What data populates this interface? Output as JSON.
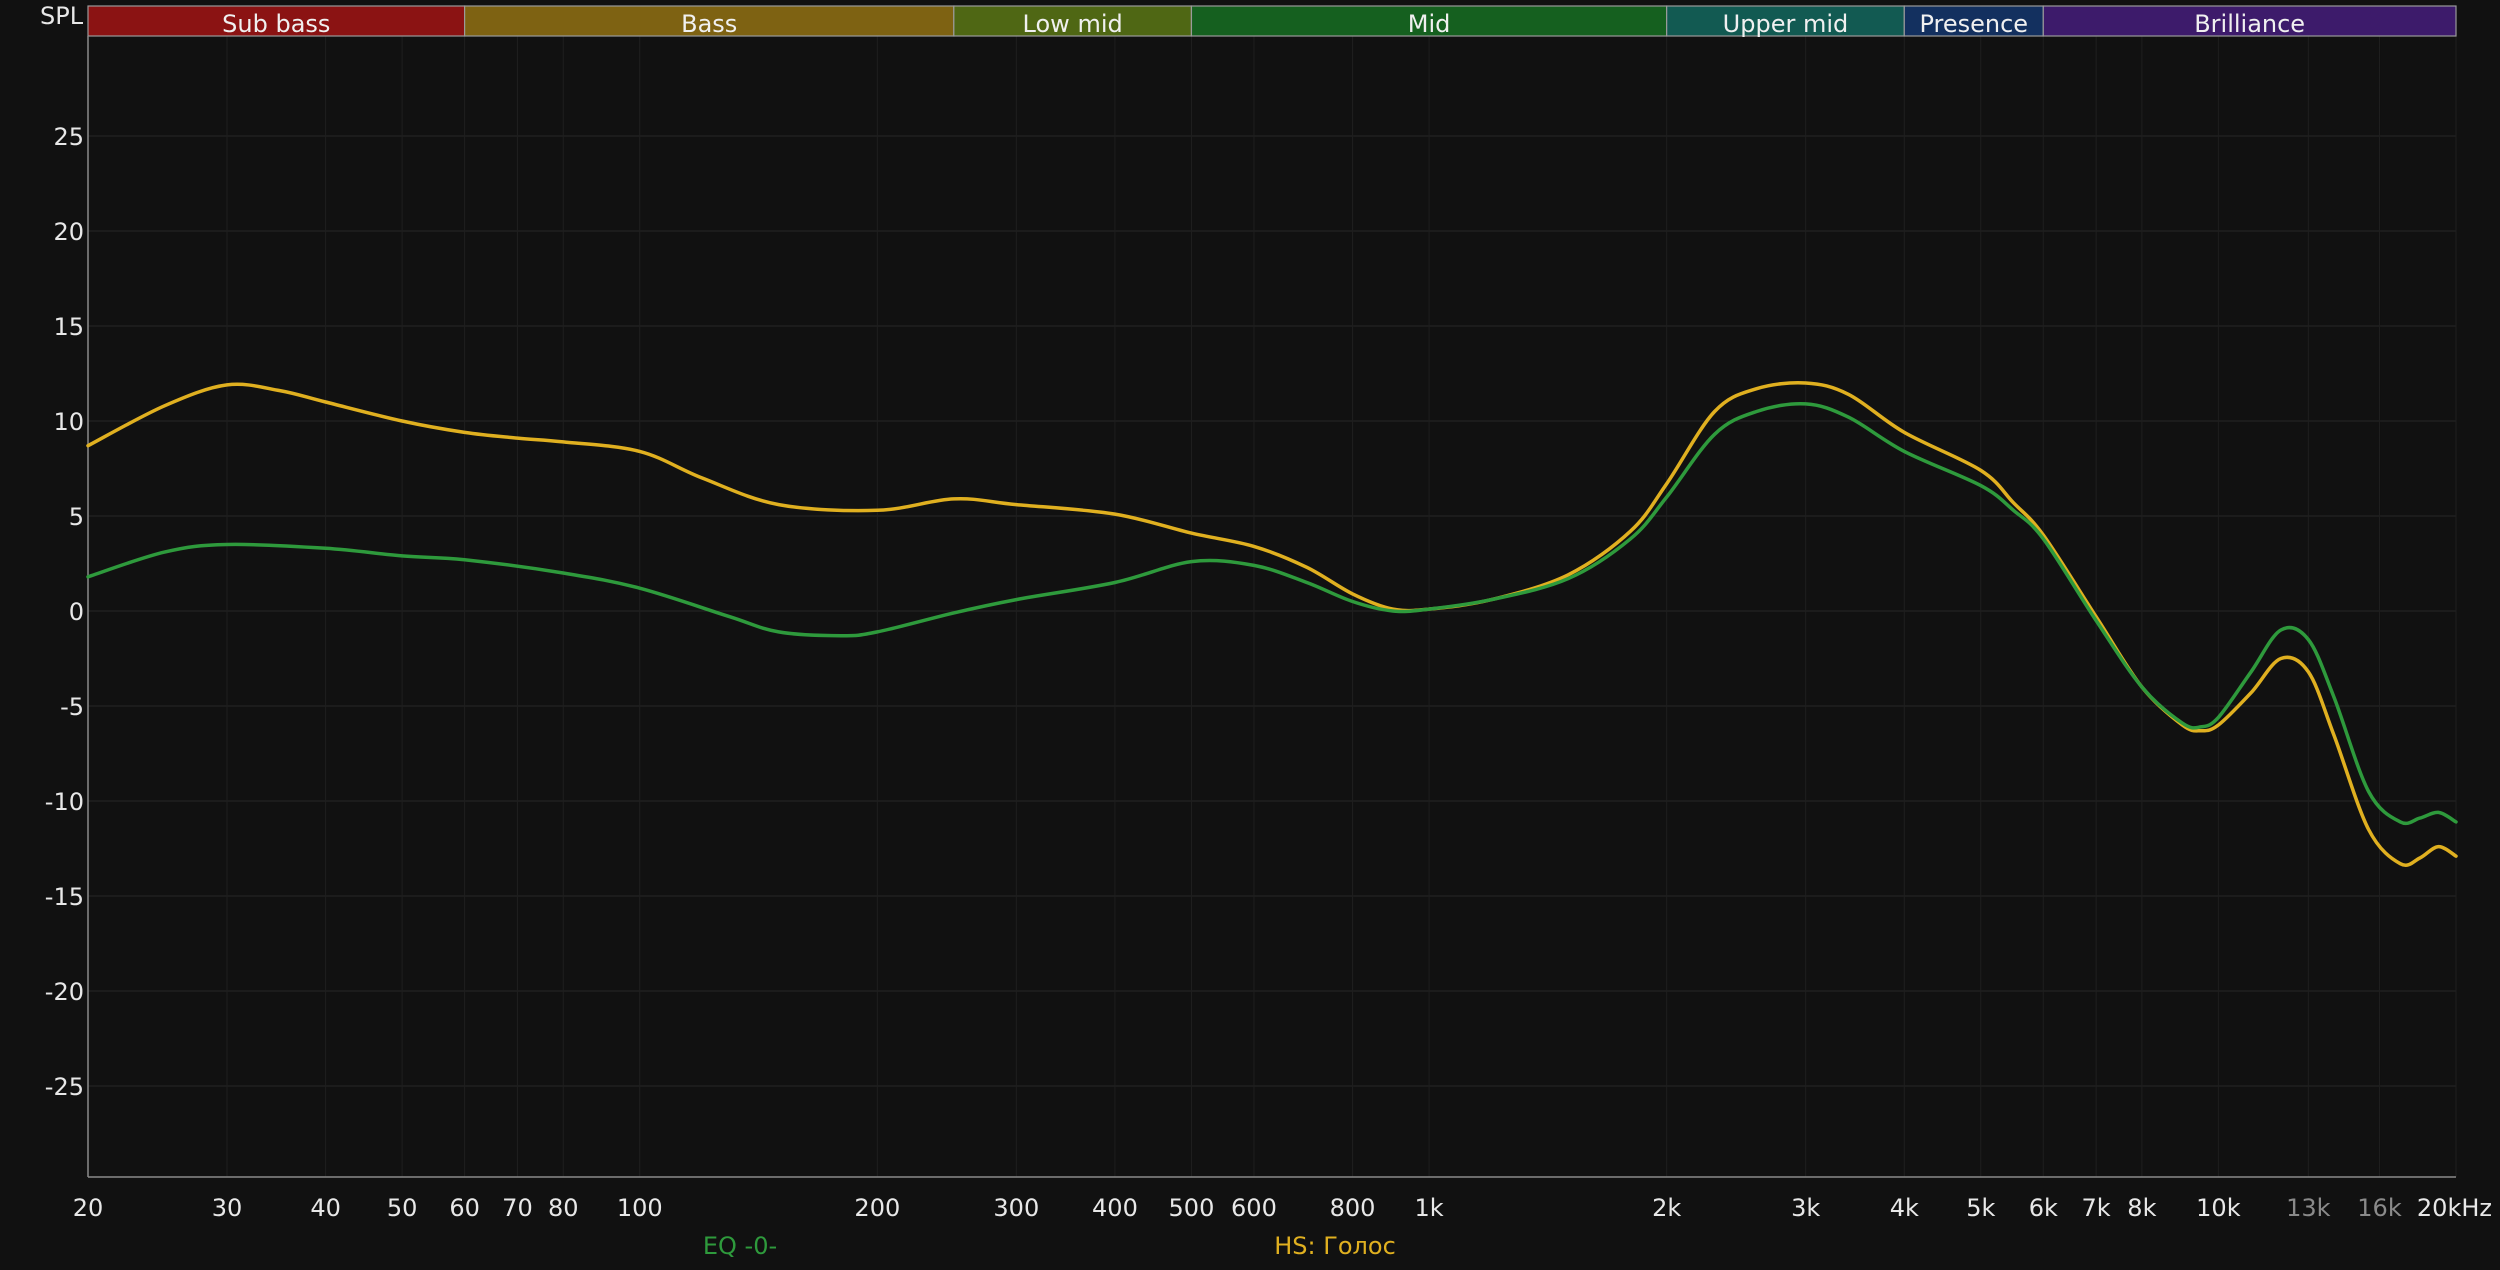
{
  "chart_data": {
    "type": "line",
    "ylabel": "SPL",
    "x_unit": "Hz",
    "x_scale": "log",
    "xlim": [
      20,
      20000
    ],
    "ylim": [
      -30,
      30
    ],
    "y_ticks": [
      25,
      20,
      15,
      10,
      5,
      0,
      -5,
      -10,
      -15,
      -20,
      -25
    ],
    "x_ticks": [
      {
        "value": 20,
        "label": "20"
      },
      {
        "value": 30,
        "label": "30"
      },
      {
        "value": 40,
        "label": "40"
      },
      {
        "value": 50,
        "label": "50"
      },
      {
        "value": 60,
        "label": "60"
      },
      {
        "value": 70,
        "label": "70"
      },
      {
        "value": 80,
        "label": "80"
      },
      {
        "value": 100,
        "label": "100"
      },
      {
        "value": 200,
        "label": "200"
      },
      {
        "value": 300,
        "label": "300"
      },
      {
        "value": 400,
        "label": "400"
      },
      {
        "value": 500,
        "label": "500"
      },
      {
        "value": 600,
        "label": "600"
      },
      {
        "value": 800,
        "label": "800"
      },
      {
        "value": 1000,
        "label": "1k"
      },
      {
        "value": 2000,
        "label": "2k"
      },
      {
        "value": 3000,
        "label": "3k"
      },
      {
        "value": 4000,
        "label": "4k"
      },
      {
        "value": 5000,
        "label": "5k"
      },
      {
        "value": 6000,
        "label": "6k"
      },
      {
        "value": 7000,
        "label": "7k"
      },
      {
        "value": 8000,
        "label": "8k"
      },
      {
        "value": 10000,
        "label": "10k"
      },
      {
        "value": 13000,
        "label": "13k",
        "dim": true
      },
      {
        "value": 16000,
        "label": "16k",
        "dim": true
      },
      {
        "value": 20000,
        "label": "20kHz"
      }
    ],
    "bands": [
      {
        "name": "Sub bass",
        "from": 20,
        "to": 60,
        "color": "#8b1313"
      },
      {
        "name": "Bass",
        "from": 60,
        "to": 250,
        "color": "#7e6212"
      },
      {
        "name": "Low mid",
        "from": 250,
        "to": 500,
        "color": "#4f6714"
      },
      {
        "name": "Mid",
        "from": 500,
        "to": 2000,
        "color": "#15601f"
      },
      {
        "name": "Upper mid",
        "from": 2000,
        "to": 4000,
        "color": "#125a52"
      },
      {
        "name": "Presence",
        "from": 4000,
        "to": 6000,
        "color": "#13305f"
      },
      {
        "name": "Brilliance",
        "from": 6000,
        "to": 20000,
        "color": "#3d1b6b"
      }
    ],
    "series": [
      {
        "name": "HS: Голос",
        "color": "#e0b020",
        "points": [
          [
            20,
            8.7
          ],
          [
            25,
            10.8
          ],
          [
            30,
            11.9
          ],
          [
            35,
            11.6
          ],
          [
            40,
            11.0
          ],
          [
            50,
            10.0
          ],
          [
            60,
            9.4
          ],
          [
            70,
            9.1
          ],
          [
            80,
            8.9
          ],
          [
            100,
            8.4
          ],
          [
            120,
            7.0
          ],
          [
            150,
            5.6
          ],
          [
            200,
            5.3
          ],
          [
            250,
            5.9
          ],
          [
            300,
            5.6
          ],
          [
            400,
            5.1
          ],
          [
            500,
            4.1
          ],
          [
            600,
            3.4
          ],
          [
            700,
            2.3
          ],
          [
            800,
            0.9
          ],
          [
            900,
            0.1
          ],
          [
            1000,
            0.1
          ],
          [
            1200,
            0.6
          ],
          [
            1500,
            1.9
          ],
          [
            1800,
            4.2
          ],
          [
            2000,
            6.7
          ],
          [
            2300,
            10.5
          ],
          [
            2600,
            11.7
          ],
          [
            3000,
            12.0
          ],
          [
            3400,
            11.4
          ],
          [
            4000,
            9.4
          ],
          [
            5000,
            7.4
          ],
          [
            5500,
            5.7
          ],
          [
            6000,
            4.0
          ],
          [
            7000,
            -0.3
          ],
          [
            8000,
            -4.0
          ],
          [
            9000,
            -6.0
          ],
          [
            9500,
            -6.3
          ],
          [
            10000,
            -6.0
          ],
          [
            11000,
            -4.3
          ],
          [
            12000,
            -2.5
          ],
          [
            13000,
            -3.2
          ],
          [
            14000,
            -6.5
          ],
          [
            15500,
            -11.5
          ],
          [
            17000,
            -13.3
          ],
          [
            18000,
            -13.0
          ],
          [
            19000,
            -12.4
          ],
          [
            20000,
            -12.9
          ]
        ]
      },
      {
        "name": "EQ -0-",
        "color": "#2e9a3c",
        "points": [
          [
            20,
            1.8
          ],
          [
            25,
            3.1
          ],
          [
            30,
            3.5
          ],
          [
            40,
            3.3
          ],
          [
            50,
            2.9
          ],
          [
            60,
            2.7
          ],
          [
            80,
            2.0
          ],
          [
            100,
            1.2
          ],
          [
            130,
            -0.3
          ],
          [
            150,
            -1.1
          ],
          [
            180,
            -1.3
          ],
          [
            200,
            -1.1
          ],
          [
            250,
            -0.1
          ],
          [
            300,
            0.6
          ],
          [
            400,
            1.5
          ],
          [
            500,
            2.6
          ],
          [
            600,
            2.4
          ],
          [
            700,
            1.5
          ],
          [
            800,
            0.5
          ],
          [
            900,
            0.0
          ],
          [
            1000,
            0.1
          ],
          [
            1200,
            0.6
          ],
          [
            1500,
            1.7
          ],
          [
            1800,
            3.8
          ],
          [
            2000,
            6.0
          ],
          [
            2300,
            9.3
          ],
          [
            2600,
            10.5
          ],
          [
            3000,
            10.9
          ],
          [
            3400,
            10.2
          ],
          [
            4000,
            8.4
          ],
          [
            5000,
            6.6
          ],
          [
            5500,
            5.3
          ],
          [
            6000,
            3.8
          ],
          [
            7000,
            -0.5
          ],
          [
            8000,
            -4.0
          ],
          [
            9000,
            -5.9
          ],
          [
            9500,
            -6.1
          ],
          [
            10000,
            -5.6
          ],
          [
            11000,
            -3.2
          ],
          [
            12000,
            -1.0
          ],
          [
            13000,
            -1.5
          ],
          [
            14000,
            -4.5
          ],
          [
            15500,
            -9.5
          ],
          [
            17000,
            -11.1
          ],
          [
            18000,
            -10.9
          ],
          [
            19000,
            -10.6
          ],
          [
            20000,
            -11.1
          ]
        ]
      }
    ],
    "legend_entries": [
      "EQ -0-",
      "HS: Голос"
    ]
  }
}
